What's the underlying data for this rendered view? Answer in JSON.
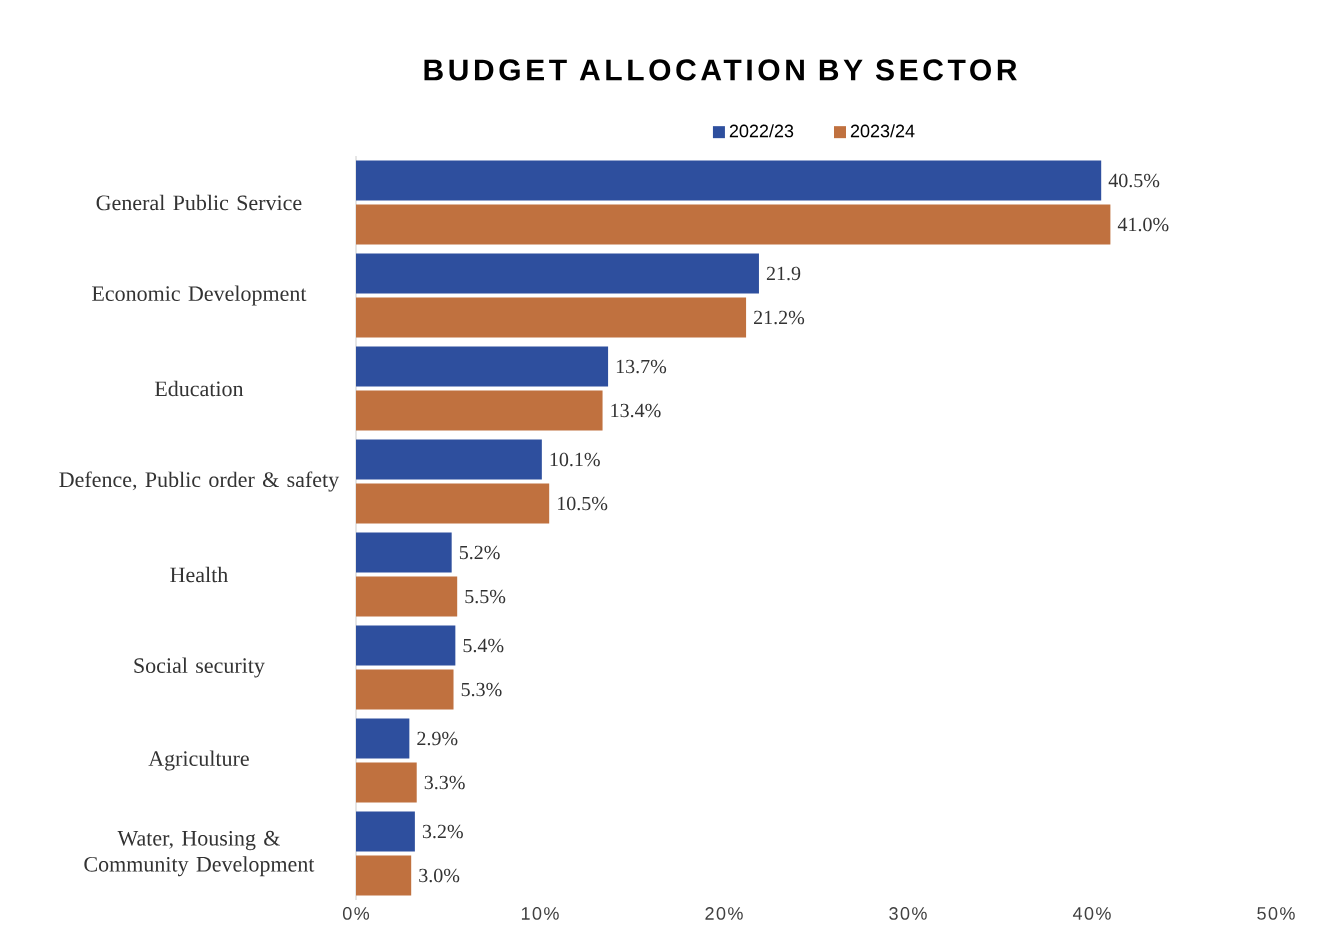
{
  "chart_data": {
    "type": "bar",
    "orientation": "horizontal",
    "title": "BUDGET ALLOCATION BY SECTOR",
    "categories": [
      "General Public Service",
      "Economic Development",
      "Education",
      "Defence, Public order & safety",
      "Health",
      "Social security",
      "Agriculture",
      "Water, Housing & Community Development"
    ],
    "series": [
      {
        "name": "2022/23",
        "color": "#2e4f9e",
        "values": [
          40.5,
          21.9,
          13.7,
          10.1,
          5.2,
          5.4,
          2.9,
          3.2
        ],
        "value_labels": [
          "40.5%",
          "21.9",
          "13.7%",
          "10.1%",
          "5.2%",
          "5.4%",
          "2.9%",
          "3.2%"
        ]
      },
      {
        "name": "2023/24",
        "color": "#c0713f",
        "values": [
          41.0,
          21.2,
          13.4,
          10.5,
          5.5,
          5.3,
          3.3,
          3.0
        ],
        "value_labels": [
          "41.0%",
          "21.2%",
          "13.4%",
          "10.5%",
          "5.5%",
          "5.3%",
          "3.3%",
          "3.0%"
        ]
      }
    ],
    "xlim": [
      0,
      50
    ],
    "xticks": [
      {
        "value": 0,
        "label": "0%"
      },
      {
        "value": 10,
        "label": "10%"
      },
      {
        "value": 20,
        "label": "20%"
      },
      {
        "value": 30,
        "label": "30%"
      },
      {
        "value": 40,
        "label": "40%"
      },
      {
        "value": 50,
        "label": "50%"
      }
    ],
    "legend": "top"
  }
}
